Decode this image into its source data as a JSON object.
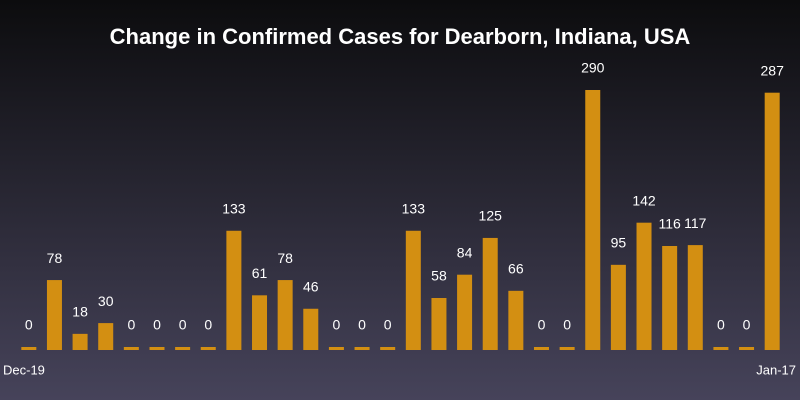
{
  "chart_data": {
    "type": "bar",
    "title": "Change in Confirmed Cases for Dearborn, Indiana, USA",
    "categories": [
      "Dec-19",
      null,
      null,
      null,
      null,
      null,
      null,
      null,
      null,
      null,
      null,
      null,
      null,
      null,
      null,
      null,
      null,
      null,
      null,
      null,
      null,
      null,
      null,
      null,
      null,
      null,
      null,
      null,
      null,
      "Jan-17"
    ],
    "values": [
      0,
      78,
      18,
      30,
      0,
      0,
      0,
      0,
      133,
      61,
      78,
      46,
      0,
      0,
      0,
      133,
      58,
      84,
      125,
      66,
      0,
      0,
      290,
      95,
      142,
      116,
      117,
      0,
      0,
      287
    ],
    "color": "#d38f12"
  }
}
